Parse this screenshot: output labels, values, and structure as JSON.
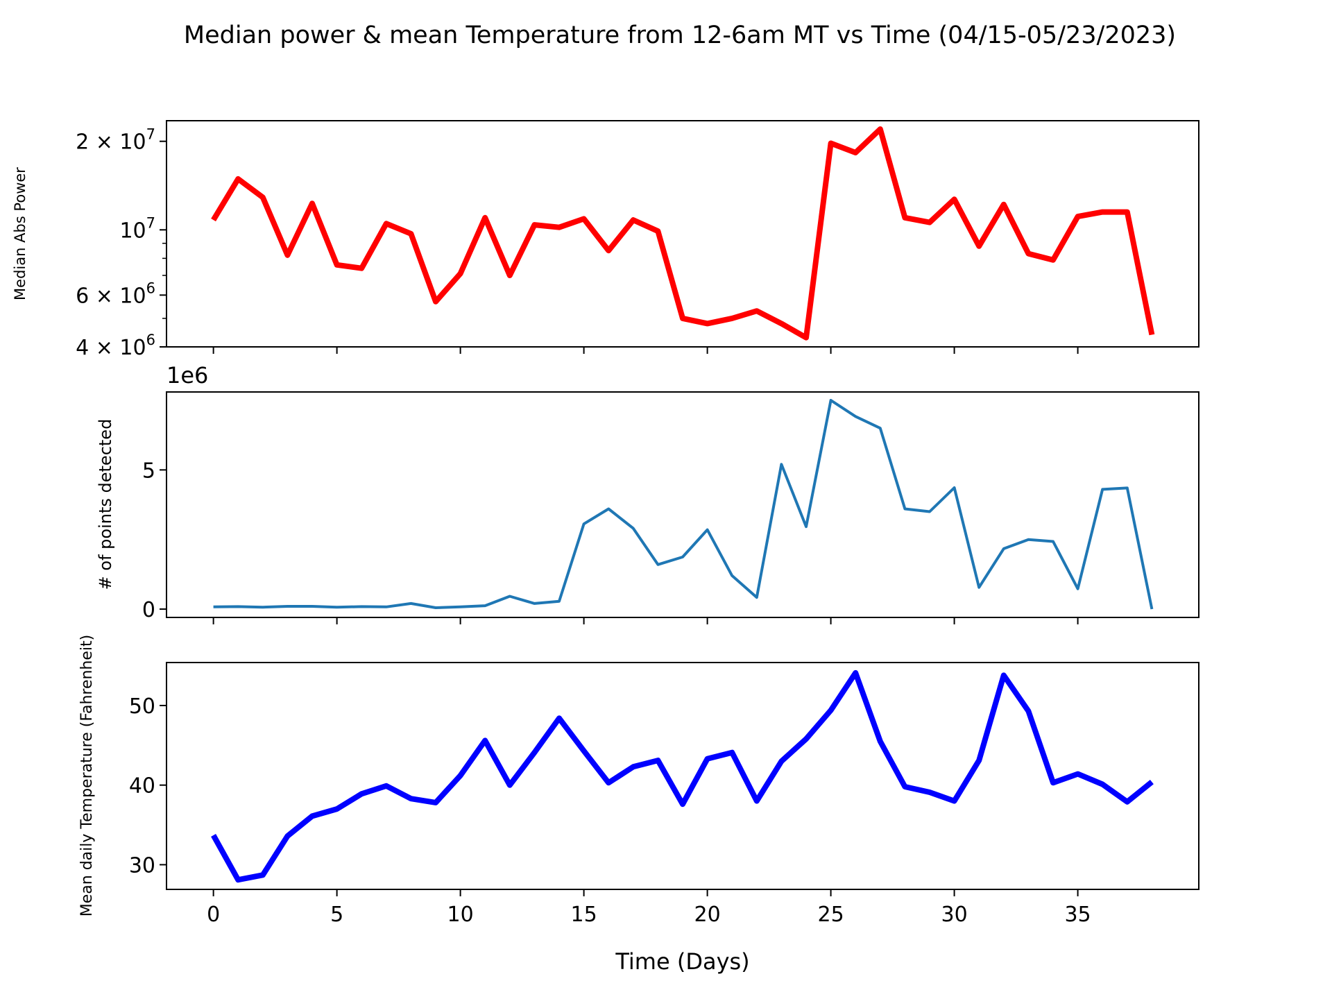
{
  "figure": {
    "title": "Median power & mean Temperature from 12-6am MT vs Time (04/15-05/23/2023)",
    "xlabel": "Time (Days)"
  },
  "chart_data": [
    {
      "type": "line",
      "panel": "top",
      "ylabel": "Median Abs Power",
      "yscale": "log",
      "ylim": [
        4000000,
        23500000
      ],
      "xlim": [
        -1.9,
        39.9
      ],
      "color": "#ff0000",
      "ytick_labels": [
        {
          "mantissa": "2",
          "exponent": "7",
          "value": 20000000
        },
        {
          "mantissa": "",
          "exponent": "7",
          "value": 10000000
        },
        {
          "mantissa": "6",
          "exponent": "6",
          "value": 6000000
        },
        {
          "mantissa": "4",
          "exponent": "6",
          "value": 4000000
        }
      ],
      "x": [
        0,
        1,
        2,
        3,
        4,
        5,
        6,
        7,
        8,
        9,
        10,
        11,
        12,
        13,
        14,
        15,
        16,
        17,
        18,
        19,
        20,
        21,
        22,
        23,
        24,
        25,
        26,
        27,
        28,
        29,
        30,
        31,
        32,
        33,
        34,
        35,
        36,
        37,
        38
      ],
      "y": [
        10800000,
        14900000,
        12900000,
        8200000,
        12300000,
        7600000,
        7400000,
        10500000,
        9700000,
        5700000,
        7100000,
        11000000,
        7000000,
        10400000,
        10200000,
        10900000,
        8500000,
        10800000,
        9900000,
        5000000,
        4800000,
        5000000,
        5300000,
        4800000,
        4300000,
        19700000,
        18300000,
        22000000,
        11000000,
        10600000,
        12700000,
        8800000,
        12200000,
        8300000,
        7900000,
        11100000,
        11500000,
        11500000,
        4400000
      ]
    },
    {
      "type": "line",
      "panel": "middle",
      "ylabel": "# of points detected",
      "offset_text": "1e6",
      "ylim": [
        -0.3,
        7.8
      ],
      "xlim": [
        -1.9,
        39.9
      ],
      "yticks": [
        0,
        5
      ],
      "color": "#1f77b4",
      "x": [
        0,
        1,
        2,
        3,
        4,
        5,
        6,
        7,
        8,
        9,
        10,
        11,
        12,
        13,
        14,
        15,
        16,
        17,
        18,
        19,
        20,
        21,
        22,
        23,
        24,
        25,
        26,
        27,
        28,
        29,
        30,
        31,
        32,
        33,
        34,
        35,
        36,
        37,
        38
      ],
      "y": [
        0.08,
        0.09,
        0.07,
        0.1,
        0.1,
        0.07,
        0.09,
        0.08,
        0.2,
        0.05,
        0.08,
        0.12,
        0.46,
        0.2,
        0.28,
        3.06,
        3.6,
        2.9,
        1.6,
        1.87,
        2.85,
        1.2,
        0.42,
        5.2,
        2.96,
        7.5,
        6.92,
        6.5,
        3.6,
        3.5,
        4.36,
        0.78,
        2.17,
        2.5,
        2.43,
        0.73,
        4.3,
        4.35,
        0.0
      ]
    },
    {
      "type": "line",
      "panel": "bottom",
      "ylabel": "Mean daily Temperature (Fahrenheit)",
      "ylim": [
        26.9,
        55.4
      ],
      "xlim": [
        -1.9,
        39.9
      ],
      "yticks": [
        30,
        40,
        50
      ],
      "xticks": [
        0,
        5,
        10,
        15,
        20,
        25,
        30,
        35
      ],
      "color": "#0000ff",
      "x": [
        0,
        1,
        2,
        3,
        4,
        5,
        6,
        7,
        8,
        9,
        10,
        11,
        12,
        13,
        14,
        15,
        16,
        17,
        18,
        19,
        20,
        21,
        22,
        23,
        24,
        25,
        26,
        27,
        28,
        29,
        30,
        31,
        32,
        33,
        34,
        35,
        36,
        37,
        38
      ],
      "y": [
        33.7,
        28.1,
        28.7,
        33.6,
        36.1,
        37.0,
        38.9,
        39.9,
        38.3,
        37.8,
        41.2,
        45.6,
        40.0,
        44.1,
        48.4,
        44.3,
        40.3,
        42.3,
        43.1,
        37.6,
        43.3,
        44.1,
        38.0,
        43.0,
        45.8,
        49.4,
        54.1,
        45.5,
        39.8,
        39.1,
        38.0,
        43.1,
        53.8,
        49.3,
        40.3,
        41.4,
        40.1,
        37.9,
        40.4
      ]
    }
  ]
}
